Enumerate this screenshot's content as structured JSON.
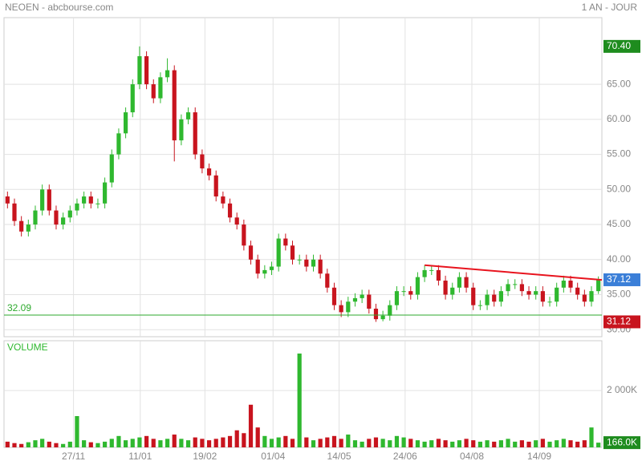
{
  "chart_data": {
    "type": "candlestick",
    "title": "NEOEN - abcbourse.com",
    "period": "1 AN - JOUR",
    "xlim": [
      0,
      86
    ],
    "xticks": [
      {
        "value": 10,
        "label": "27/11"
      },
      {
        "value": 19.6,
        "label": "11/01"
      },
      {
        "value": 28.9,
        "label": "19/02"
      },
      {
        "value": 38.7,
        "label": "01/04"
      },
      {
        "value": 48.2,
        "label": "14/05"
      },
      {
        "value": 57.7,
        "label": "24/06"
      },
      {
        "value": 67.3,
        "label": "04/08"
      },
      {
        "value": 77,
        "label": "14/09"
      }
    ],
    "ylim": [
      29,
      74.5
    ],
    "yticks": [
      {
        "value": 30,
        "label": "30.00"
      },
      {
        "value": 35,
        "label": "35.00"
      },
      {
        "value": 40,
        "label": "40.00"
      },
      {
        "value": 45,
        "label": "45.00"
      },
      {
        "value": 50,
        "label": "50.00"
      },
      {
        "value": 55,
        "label": "55.00"
      },
      {
        "value": 60,
        "label": "60.00"
      },
      {
        "value": 65,
        "label": "65.00"
      }
    ],
    "grid": true,
    "up_color": "#2fb82f",
    "down_color": "#c8141e",
    "open": [
      49,
      48,
      45.5,
      44,
      45,
      47,
      50,
      47,
      45,
      46,
      47,
      48,
      49,
      48,
      48,
      51,
      55,
      58,
      61,
      65,
      69,
      65,
      63,
      66,
      67,
      57,
      60,
      61,
      55,
      53,
      52,
      49,
      48,
      46,
      45,
      42,
      40,
      38,
      38.5,
      39,
      43,
      42,
      40,
      40,
      39,
      40,
      38,
      36,
      33.5,
      32.5,
      34,
      34.5,
      35,
      33,
      31.5,
      32,
      33.5,
      35.5,
      35.5,
      35,
      37.5,
      38.5,
      38.5,
      37,
      35,
      36,
      37.5,
      36,
      33.5,
      33.5,
      35,
      34,
      35.5,
      36.5,
      36.5,
      35.5,
      35,
      35.5,
      34,
      34,
      36,
      37,
      36,
      35,
      34,
      35.5
    ],
    "high": [
      49.7,
      48.7,
      46.2,
      45.7,
      47.7,
      50.7,
      50.7,
      47.7,
      46.7,
      47.7,
      48.7,
      49.7,
      49.7,
      48.7,
      51.7,
      55.7,
      58.7,
      61.7,
      65.7,
      70.4,
      69.7,
      65.7,
      66.7,
      68.7,
      67.7,
      60.7,
      61.7,
      61.7,
      55.7,
      53.7,
      52.7,
      49.7,
      48.7,
      46.7,
      45.7,
      42.7,
      40.7,
      39.2,
      39.7,
      43.7,
      43.7,
      42.7,
      40.7,
      40.7,
      40.7,
      40.7,
      38.7,
      36.7,
      34.2,
      34.7,
      35.2,
      35.7,
      35.7,
      33.7,
      32.7,
      34.2,
      36.2,
      36.2,
      36.2,
      38.2,
      39.2,
      39.2,
      39.2,
      37.7,
      36.7,
      38.2,
      38.2,
      36.7,
      34.2,
      35.7,
      35.7,
      36.2,
      37.2,
      37.2,
      37.2,
      36.2,
      36.2,
      36.2,
      34.7,
      36.7,
      37.7,
      37.7,
      36.7,
      35.7,
      36.2,
      37.6
    ],
    "low": [
      47.3,
      44.8,
      43.3,
      43.3,
      44.3,
      46.3,
      46.3,
      44.3,
      44.3,
      45.3,
      46.3,
      47.3,
      47.3,
      47.3,
      47.3,
      50.3,
      54.3,
      57.3,
      60.3,
      64.3,
      64.3,
      62.3,
      62.3,
      65.3,
      54,
      56.3,
      59.3,
      54.3,
      52.3,
      51.3,
      48.3,
      47.3,
      45.3,
      44.3,
      41.3,
      39.3,
      37.3,
      37.3,
      37.8,
      38.3,
      41.3,
      39.3,
      39.3,
      38.3,
      38.3,
      37.3,
      35.3,
      32.8,
      31.8,
      31.8,
      33.3,
      33.8,
      32.3,
      31.12,
      31.2,
      31.3,
      32.8,
      34.8,
      34.3,
      34.3,
      36.8,
      37.8,
      36.3,
      34.3,
      34.3,
      35.3,
      35.3,
      32.8,
      32.8,
      32.8,
      33.3,
      33.3,
      34.8,
      35.8,
      34.8,
      34.3,
      34.3,
      33.3,
      33.3,
      33.3,
      35.3,
      35.3,
      34.3,
      33.3,
      33.3,
      35.1
    ],
    "close": [
      48,
      45.5,
      44,
      45,
      47,
      50,
      47,
      45,
      46,
      47,
      48,
      49,
      48,
      48,
      51,
      55,
      58,
      61,
      65,
      69,
      65,
      63,
      66,
      67,
      57,
      60,
      61,
      55,
      53,
      52,
      49,
      48,
      46,
      45,
      42,
      40,
      38,
      38.5,
      39,
      43,
      42,
      40,
      40,
      39,
      40,
      38,
      36,
      33.5,
      32.5,
      34,
      34.5,
      35,
      33,
      31.5,
      32,
      33.5,
      35.5,
      35.5,
      35,
      37.5,
      38.5,
      38.5,
      37,
      35,
      36,
      37.5,
      36,
      33.5,
      33.5,
      35,
      34,
      35.5,
      36.5,
      36.5,
      35.5,
      35,
      35.5,
      34,
      34,
      36,
      37,
      36,
      35,
      34,
      35.5,
      37.12
    ],
    "support": {
      "value": 32.09,
      "label": "32.09",
      "color": "#2eaa2e"
    },
    "trendline": {
      "x": [
        60.5,
        86
      ],
      "y": [
        39.2,
        37.1
      ],
      "color": "#e8141e"
    },
    "markers": [
      {
        "value": 70.4,
        "label": "70.40",
        "color": "#1e8c1e"
      },
      {
        "value": 37.12,
        "label": "37.12",
        "color": "#3b7fd8"
      },
      {
        "value": 31.12,
        "label": "31.12",
        "color": "#c8141e"
      }
    ],
    "volume": {
      "title": "VOLUME",
      "ylim": [
        0,
        3750
      ],
      "yticks": [
        {
          "value": 2000,
          "label": "2 000K"
        }
      ],
      "values": [
        200,
        150,
        120,
        180,
        250,
        300,
        200,
        150,
        120,
        200,
        1100,
        250,
        180,
        150,
        200,
        300,
        400,
        250,
        300,
        350,
        400,
        300,
        250,
        300,
        450,
        300,
        250,
        350,
        300,
        250,
        300,
        350,
        400,
        600,
        500,
        1500,
        700,
        400,
        300,
        350,
        400,
        300,
        3300,
        350,
        250,
        300,
        350,
        400,
        300,
        450,
        250,
        200,
        300,
        350,
        300,
        250,
        400,
        350,
        300,
        250,
        200,
        250,
        300,
        250,
        200,
        250,
        300,
        250,
        200,
        250,
        200,
        250,
        300,
        200,
        250,
        200,
        250,
        300,
        200,
        250,
        300,
        250,
        200,
        250,
        700,
        166
      ],
      "last": {
        "value": 166,
        "label": "166.0K",
        "color": "#1e8c1e"
      }
    }
  }
}
